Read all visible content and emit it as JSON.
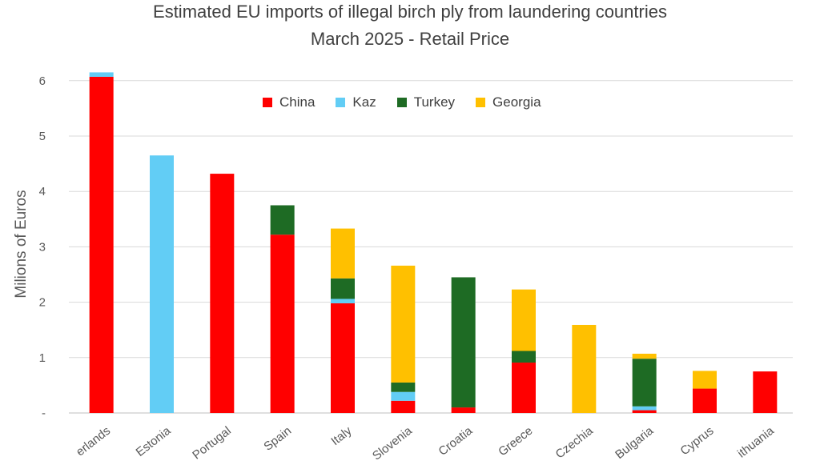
{
  "chart_data": {
    "type": "bar",
    "stacked": true,
    "title": "Estimated EU imports of illegal birch ply from laundering countries",
    "subtitle": "March 2025 - Retail Price",
    "ylabel": "Milions of Euros",
    "xlabel": "",
    "ylim": [
      0,
      6.3
    ],
    "yticks": [
      "-",
      "1",
      "2",
      "3",
      "4",
      "5",
      "6"
    ],
    "grid": true,
    "legend_position": "top",
    "categories": [
      "Netherlands",
      "Estonia",
      "Portugal",
      "Spain",
      "Italy",
      "Slovenia",
      "Croatia",
      "Greece",
      "Czechia",
      "Bulgaria",
      "Cyprus",
      "Lithuania"
    ],
    "category_labels_shown": [
      "erlands",
      "Estonia",
      "Portugal",
      "Spain",
      "Italy",
      "Slovenia",
      "Croatia",
      "Greece",
      "Czechia",
      "Bulgaria",
      "Cyprus",
      "ithuania"
    ],
    "series": [
      {
        "name": "China",
        "color": "#ff0000",
        "values": [
          6.07,
          0,
          4.32,
          3.22,
          1.98,
          0.22,
          0.1,
          0.91,
          0,
          0.05,
          0.44,
          0.75
        ]
      },
      {
        "name": "Kaz",
        "color": "#62cdf5",
        "values": [
          0.08,
          4.65,
          0,
          0,
          0.08,
          0.16,
          0,
          0,
          0,
          0.07,
          0,
          0
        ]
      },
      {
        "name": "Turkey",
        "color": "#1e6b24",
        "values": [
          0,
          0,
          0,
          0.53,
          0.37,
          0.17,
          2.35,
          0.21,
          0,
          0.86,
          0,
          0
        ]
      },
      {
        "name": "Georgia",
        "color": "#ffc000",
        "values": [
          0,
          0,
          0,
          0,
          0.9,
          2.11,
          0,
          1.11,
          1.59,
          0.09,
          0.32,
          0
        ]
      }
    ]
  }
}
